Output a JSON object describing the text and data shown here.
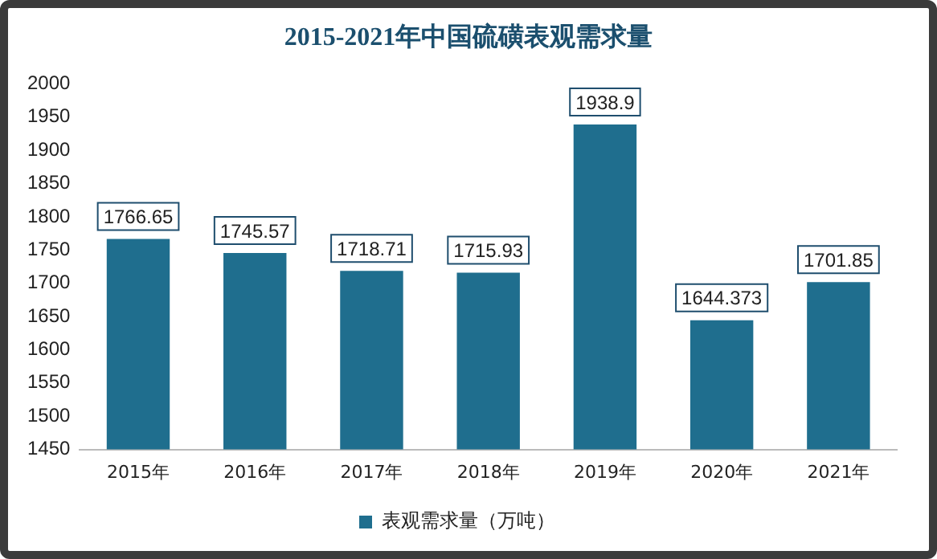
{
  "chart_data": {
    "type": "bar",
    "title": "2015-2021年中国硫磺表观需求量",
    "categories": [
      "2015年",
      "2016年",
      "2017年",
      "2018年",
      "2019年",
      "2020年",
      "2021年"
    ],
    "series": [
      {
        "name": "表观需求量（万吨）",
        "color": "#1f6e8e",
        "values": [
          1766.65,
          1745.57,
          1718.71,
          1715.93,
          1938.9,
          1644.373,
          1701.85
        ]
      }
    ],
    "ylim": [
      1450,
      2000
    ],
    "yticks": [
      1450,
      1500,
      1550,
      1600,
      1650,
      1700,
      1750,
      1800,
      1850,
      1900,
      1950,
      2000
    ],
    "grid": false,
    "legend": "bottom",
    "data_labels": true
  }
}
